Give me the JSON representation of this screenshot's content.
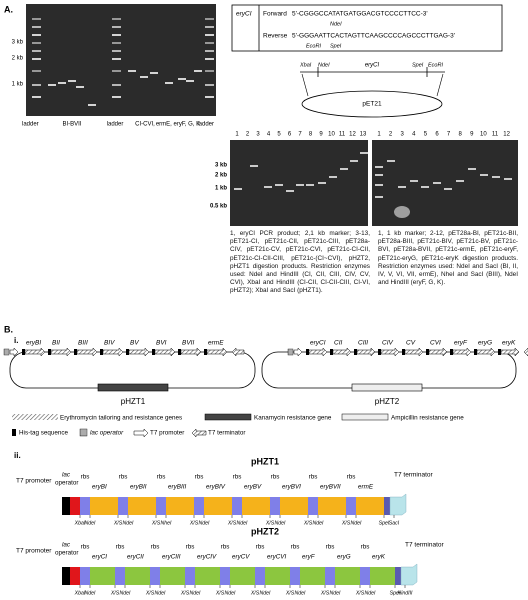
{
  "panel_a": {
    "label": "A.",
    "gel_1": {
      "size_labels": [
        "3 kb",
        "2 kb",
        "1 kb"
      ],
      "lane_labels": [
        "ladder",
        "BI-BVII",
        "ladder",
        "CI-CVI,",
        "ermE, eryF, G, K",
        "ladder"
      ]
    },
    "primers": {
      "gene": "eryCI",
      "forward": {
        "label": "Forward",
        "sequence": "5'-CGGGCCATATGATGGACGTCCCCTTCC-3'",
        "site": "NdeI"
      },
      "reverse": {
        "label": "Reverse",
        "sequence": "5'-GGGAATTCACTAGTTCAAGCCCCAGCCCTTGAG-3'",
        "sites": [
          "EcoRI",
          "SpeI"
        ]
      }
    },
    "vector": {
      "left_sites": [
        "XbaI",
        "NdeI"
      ],
      "insert": "eryCI",
      "right_sites": [
        "SpeI",
        "EcoRI"
      ],
      "name": "pET21"
    },
    "gel_2": {
      "lanes": [
        "1",
        "2",
        "3",
        "4",
        "5",
        "6",
        "7",
        "8",
        "9",
        "10",
        "11",
        "12",
        "13"
      ],
      "size_labels": [
        "3 kb",
        "2 kb",
        "1 kb",
        "0.5 kb"
      ],
      "caption": "1, eryCI PCR product; 2,1 kb marker; 3-13, pET21-CI, pET21c-CII, pET21c-CIII, pET28a-CIV, pET21c-CV, pET21c-CVI, pET21c-CI-CII, pET21c-CI-CII-CIII, pET21c-(CI~CVI), pHZT2, pHZT1 digestion products. Restriction enzymes used: NdeI and HindIII (CI, CII, CIII, CIV, CV, CVI), XbaI and HindIII (CI-CII, CI-CII-CIII, CI-VI, pHZT2); XbaI and SacI (pHZT1)."
    },
    "gel_3": {
      "lanes": [
        "1",
        "2",
        "3",
        "4",
        "5",
        "6",
        "7",
        "8",
        "9",
        "10",
        "11",
        "12"
      ],
      "caption": "1, 1 kb marker; 2-12, pET28a-BI, pET21c-BII, pET28a-BIII, pET21c-BIV, pET21c-BV, pET21c-BVI, pET28a-BVII, pET21c-ermE, pET21c-eryF, pET21c-eryG, pET21c-eryK digestion products. Restriction enzymes used: NdeI and SacI (BI, II, IV, V, VI, VII, ermE), NheI and SacI (BIII), NdeI and HindIII (eryF, G, K)."
    }
  },
  "panel_b": {
    "label": "B.",
    "part_i": {
      "label": "i.",
      "plasmids": [
        {
          "name": "pHZT1",
          "genes": [
            "eryBI",
            "BII",
            "BIII",
            "BIV",
            "BV",
            "BVI",
            "BVII",
            "ermE"
          ]
        },
        {
          "name": "pHZT2",
          "genes": [
            "eryCI",
            "CII",
            "CIII",
            "CIV",
            "CV",
            "CVI",
            "eryF",
            "eryG",
            "eryK"
          ]
        }
      ],
      "legend": [
        "Erythromycin tailoring and resistance genes",
        "Kanamycin resistance gene",
        "Ampicillin resistance gene",
        "His-tag sequence",
        "lac operator",
        "T7 promoter",
        "T7 terminator"
      ]
    },
    "part_ii": {
      "label": "ii.",
      "constructs": [
        {
          "name": "pHZT1",
          "promoter": "T7 promoter",
          "operator": [
            "lac",
            "operator"
          ],
          "terminator": "T7 terminator",
          "rbs": [
            "rbs",
            "rbs",
            "rbs",
            "rbs",
            "rbs",
            "rbs",
            "rbs",
            "rbs"
          ],
          "genes": [
            "eryBI",
            "eryBII",
            "eryBIII",
            "eryBIV",
            "eryBV",
            "eryBVI",
            "eryBVII",
            "ermE"
          ],
          "sites": [
            "XbaI",
            "NdeI",
            "X/S",
            "NdeI",
            "X/S",
            "NheI",
            "X/S",
            "NdeI",
            "X/S",
            "NdeI",
            "X/S",
            "NdeI",
            "X/S",
            "NdeI",
            "X/S",
            "NdeI",
            "SpeI",
            "SacI"
          ]
        },
        {
          "name": "pHZT2",
          "promoter": "T7 promoter",
          "operator": [
            "lac",
            "operator"
          ],
          "terminator": "T7 terminator",
          "rbs": [
            "rbs",
            "rbs",
            "rbs",
            "rbs",
            "rbs",
            "rbs",
            "rbs",
            "rbs",
            "rbs"
          ],
          "genes": [
            "eryCI",
            "eryCII",
            "eryCIII",
            "eryCIV",
            "eryCV",
            "eryCVI",
            "eryF",
            "eryG",
            "eryK"
          ],
          "sites": [
            "XbaI",
            "NdeI",
            "X/S",
            "NdeI",
            "X/S",
            "NdeI",
            "X/S",
            "NdeI",
            "X/S",
            "NdeI",
            "X/S",
            "NdeI",
            "X/S",
            "NdeI",
            "X/S",
            "NdeI",
            "X/S",
            "NdeI",
            "SpeI",
            "HindIII"
          ]
        }
      ]
    }
  }
}
